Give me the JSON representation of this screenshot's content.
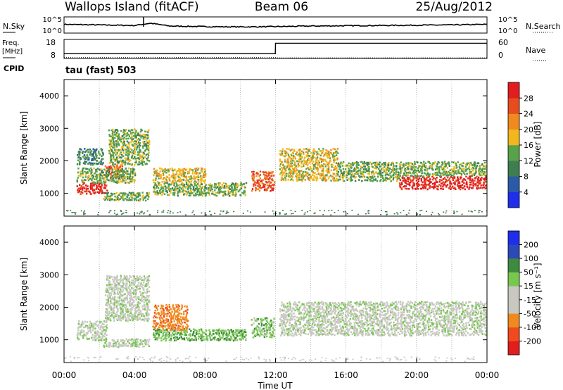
{
  "header": {
    "station": "Wallops Island (fitACF)",
    "beam": "Beam 06",
    "date": "25/Aug/2012"
  },
  "noise_panel": {
    "left_label": "N.Sky",
    "right_label": "N.Search",
    "left_ticks": [
      "10^5",
      "10^0"
    ],
    "right_ticks": [
      "10^5",
      "10^0"
    ]
  },
  "freq_panel": {
    "left_label_1": "Freq.",
    "left_label_2": "[MHz]",
    "right_label": "Nave",
    "left_ticks": [
      "18",
      "8"
    ],
    "right_ticks": [
      "60",
      "0"
    ]
  },
  "cpid": {
    "label": "CPID",
    "value": "tau (fast) 503"
  },
  "power_panel": {
    "ylabel": "Slant Range [km]",
    "colorbar_label": "Power [dB]",
    "colorbar_ticks": [
      "28",
      "24",
      "20",
      "16",
      "12",
      "8",
      "4"
    ]
  },
  "velocity_panel": {
    "ylabel": "Slant Range [km]",
    "colorbar_label": "Velocity [m s⁻¹]",
    "colorbar_ticks": [
      "200",
      "100",
      "50",
      "15",
      "-15",
      "-50",
      "-100",
      "-200"
    ]
  },
  "xaxis": {
    "label": "Time UT",
    "ticks": [
      "00:00",
      "04:00",
      "08:00",
      "12:00",
      "16:00",
      "20:00",
      "00:00"
    ]
  },
  "colors": {
    "power_scale": [
      "#1e2eea",
      "#2b5aa8",
      "#3e7e50",
      "#58a24a",
      "#f1b71c",
      "#f08a1e",
      "#e74c1e",
      "#e21d1d"
    ],
    "velocity_scale": [
      "#e21d1d",
      "#f04a1e",
      "#f08a1e",
      "#c8c8c0",
      "#c8c8c0",
      "#78c850",
      "#3e8a3e",
      "#2b4ab8",
      "#1e2eea"
    ]
  },
  "chart_data": [
    {
      "type": "line",
      "series": [
        {
          "name": "N.Sky",
          "x": [
            0,
            2,
            4,
            4.9,
            6,
            8,
            10,
            12,
            14,
            16,
            18,
            20,
            22,
            24
          ],
          "y": [
            2.6,
            2.4,
            2.2,
            3.0,
            2.0,
            1.8,
            1.7,
            1.8,
            2.0,
            2.1,
            2.2,
            2.3,
            2.4,
            2.6
          ]
        }
      ],
      "xlim": [
        0,
        24
      ]
    },
    {
      "type": "line",
      "series": [
        {
          "name": "Freq.",
          "x": [
            0,
            11.99,
            12.0,
            24
          ],
          "y": [
            10.5,
            10.5,
            16,
            16
          ]
        },
        {
          "name": "Nave",
          "x": [
            0,
            12,
            12.01,
            24
          ],
          "y": [
            3,
            3,
            2,
            2
          ]
        }
      ],
      "xlim": [
        0,
        24
      ],
      "ylim_left": [
        8,
        18
      ],
      "ylim_right": [
        0,
        60
      ]
    },
    {
      "type": "heatmap",
      "title": "Power [dB]",
      "xlabel": "Time UT",
      "ylabel": "Slant Range [km]",
      "xlim": [
        0,
        24
      ],
      "ylim": [
        300,
        4500
      ],
      "yticks": [
        1000,
        2000,
        3000,
        4000
      ],
      "colorbar_ticks": [
        4,
        8,
        12,
        16,
        20,
        24,
        28
      ],
      "regions": [
        {
          "x": [
            0.7,
            2.4
          ],
          "y": [
            1000,
            1350
          ],
          "value": 28
        },
        {
          "x": [
            2.3,
            3.3
          ],
          "y": [
            1500,
            1900
          ],
          "value": 24
        },
        {
          "x": [
            0.7,
            4.0
          ],
          "y": [
            1350,
            1800
          ],
          "value": 12
        },
        {
          "x": [
            0.7,
            2.2
          ],
          "y": [
            1900,
            2400
          ],
          "value": 8
        },
        {
          "x": [
            2.5,
            4.8
          ],
          "y": [
            1900,
            3000
          ],
          "value": 12
        },
        {
          "x": [
            2.2,
            4.8
          ],
          "y": [
            800,
            1050
          ],
          "value": 12
        },
        {
          "x": [
            5.0,
            8.0
          ],
          "y": [
            1350,
            1800
          ],
          "value": 16
        },
        {
          "x": [
            5.0,
            10.3
          ],
          "y": [
            950,
            1350
          ],
          "value": 12
        },
        {
          "x": [
            10.6,
            11.9
          ],
          "y": [
            1100,
            1700
          ],
          "value": 24
        },
        {
          "x": [
            12.2,
            15.5
          ],
          "y": [
            1400,
            2400
          ],
          "value": 16
        },
        {
          "x": [
            15.5,
            19.0
          ],
          "y": [
            1400,
            2000
          ],
          "value": 12
        },
        {
          "x": [
            19.0,
            24.0
          ],
          "y": [
            1150,
            1550
          ],
          "value": 28
        },
        {
          "x": [
            19.0,
            24.0
          ],
          "y": [
            1550,
            2000
          ],
          "value": 12
        }
      ]
    },
    {
      "type": "heatmap",
      "title": "Velocity [m s⁻¹]",
      "xlabel": "Time UT",
      "ylabel": "Slant Range [km]",
      "xlim": [
        0,
        24
      ],
      "ylim": [
        300,
        4500
      ],
      "yticks": [
        1000,
        2000,
        3000,
        4000
      ],
      "colorbar_ticks": [
        -200,
        -100,
        -50,
        -15,
        15,
        50,
        100,
        200
      ],
      "regions": [
        {
          "x": [
            0.7,
            2.4
          ],
          "y": [
            1000,
            1600
          ],
          "value": 0
        },
        {
          "x": [
            2.3,
            4.8
          ],
          "y": [
            1600,
            3000
          ],
          "value": 0
        },
        {
          "x": [
            5.0,
            7.0
          ],
          "y": [
            1300,
            2100
          ],
          "value": -80
        },
        {
          "x": [
            5.0,
            10.3
          ],
          "y": [
            1000,
            1350
          ],
          "value": 40
        },
        {
          "x": [
            2.2,
            4.8
          ],
          "y": [
            800,
            1050
          ],
          "value": 10
        },
        {
          "x": [
            10.6,
            11.9
          ],
          "y": [
            1100,
            1700
          ],
          "value": 30
        },
        {
          "x": [
            12.2,
            24.0
          ],
          "y": [
            1150,
            2200
          ],
          "value": 0
        }
      ]
    }
  ]
}
